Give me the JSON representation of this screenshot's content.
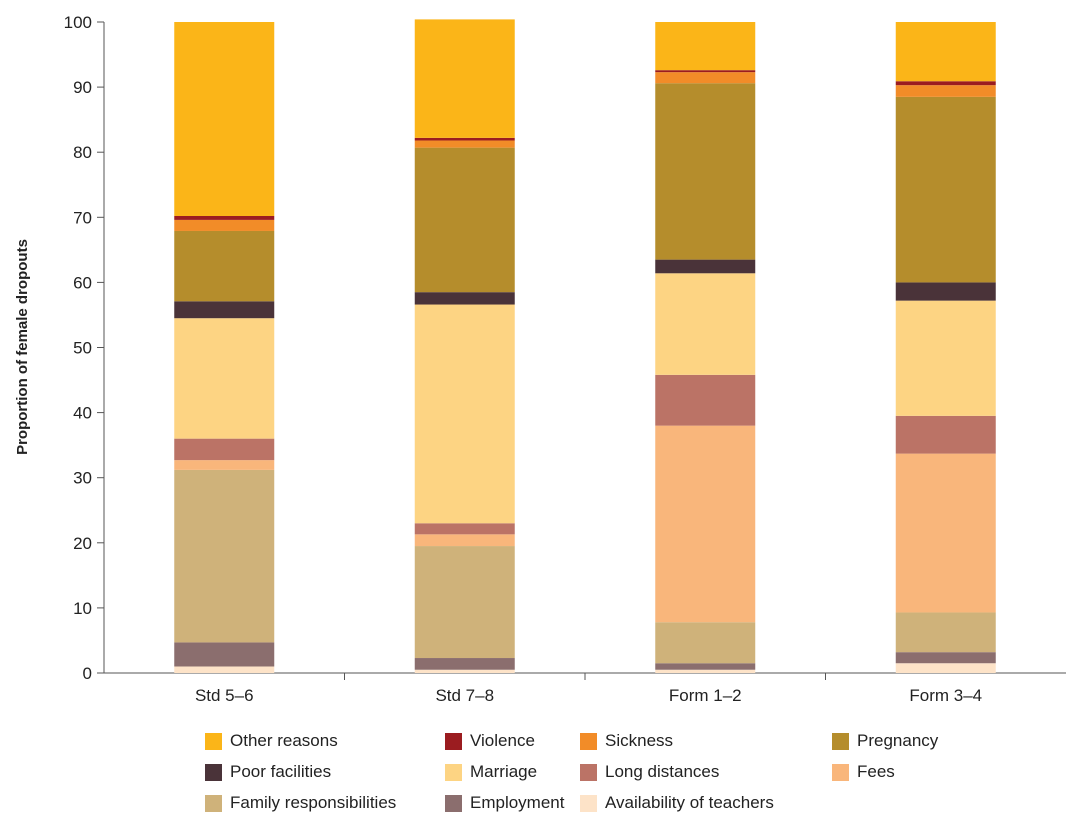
{
  "chart_data": {
    "type": "bar",
    "stacked": true,
    "ylabel": "Proportion of female dropouts",
    "xlabel": "",
    "ylim": [
      0,
      100
    ],
    "yticks": [
      0,
      10,
      20,
      30,
      40,
      50,
      60,
      70,
      80,
      90,
      100
    ],
    "categories": [
      "Std 5–6",
      "Std 7–8",
      "Form 1–2",
      "Form 3–4"
    ],
    "legend_position": "bottom",
    "series": [
      {
        "name": "Availability of teachers",
        "color": "#fde3c8",
        "values": [
          1.0,
          0.5,
          0.5,
          1.5
        ]
      },
      {
        "name": "Employment",
        "color": "#8b6e6e",
        "values": [
          3.7,
          1.8,
          1.0,
          1.7
        ]
      },
      {
        "name": "Family responsibilities",
        "color": "#cfb27a",
        "values": [
          26.5,
          17.2,
          6.3,
          6.1
        ]
      },
      {
        "name": "Fees",
        "color": "#f9b67b",
        "values": [
          1.5,
          1.8,
          30.2,
          24.4
        ]
      },
      {
        "name": "Long distances",
        "color": "#bb7366",
        "values": [
          3.3,
          1.7,
          7.8,
          5.8
        ]
      },
      {
        "name": "Marriage",
        "color": "#fdd483",
        "values": [
          18.5,
          33.6,
          15.6,
          17.7
        ]
      },
      {
        "name": "Poor facilities",
        "color": "#4a3339",
        "values": [
          2.6,
          1.9,
          2.1,
          2.8
        ]
      },
      {
        "name": "Pregnancy",
        "color": "#b58d2c",
        "values": [
          10.8,
          22.2,
          27.1,
          28.5
        ]
      },
      {
        "name": "Sickness",
        "color": "#f28c28",
        "values": [
          1.7,
          1.1,
          1.7,
          1.8
        ]
      },
      {
        "name": "Violence",
        "color": "#9b1c20",
        "values": [
          0.6,
          0.4,
          0.3,
          0.6
        ]
      },
      {
        "name": "Other reasons",
        "color": "#fbb518",
        "values": [
          29.8,
          18.2,
          7.4,
          9.1
        ]
      }
    ],
    "legend_order": [
      "Other reasons",
      "Violence",
      "Sickness",
      "Pregnancy",
      "Poor facilities",
      "Marriage",
      "Long distances",
      "Fees",
      "Family responsibilities",
      "Employment",
      "Availability of teachers"
    ]
  }
}
